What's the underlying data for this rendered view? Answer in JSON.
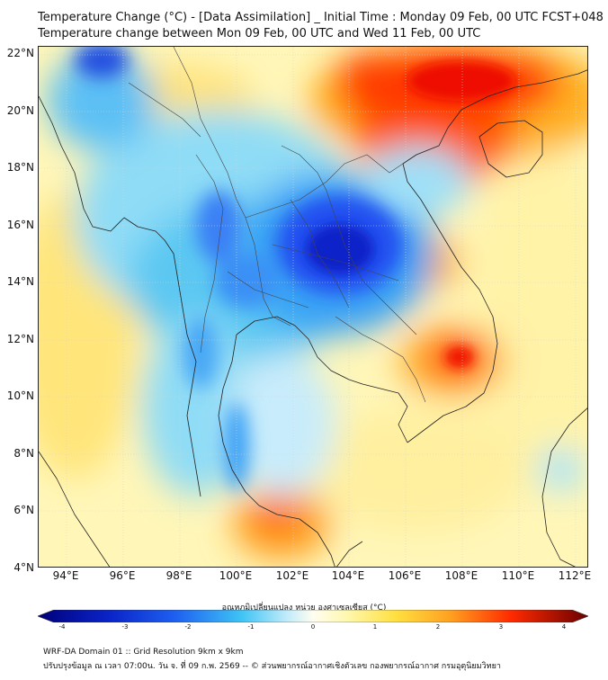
{
  "header": {
    "title_line1": "Temperature Change (°C) - [Data Assimilation] _ Initial Time : Monday 09 Feb, 00 UTC FCST+048",
    "title_line2": "Temperature change between Mon 09 Feb, 00 UTC and Wed 11 Feb, 00 UTC"
  },
  "map": {
    "lon_range": [
      93,
      112.5
    ],
    "lat_range": [
      4,
      22.3
    ],
    "lat_ticks": [
      "22°N",
      "20°N",
      "18°N",
      "16°N",
      "14°N",
      "12°N",
      "10°N",
      "8°N",
      "6°N",
      "4°N"
    ],
    "lon_ticks": [
      "94°E",
      "96°E",
      "98°E",
      "100°E",
      "102°E",
      "104°E",
      "106°E",
      "108°E",
      "110°E",
      "112°E"
    ]
  },
  "colorbar": {
    "label": "อุณหภูมิเปลี่ยนแปลง หน่วย องศาเซลเซียส (°C)",
    "ticks": [
      "-4",
      "-3",
      "-2",
      "-1",
      "0",
      "1",
      "2",
      "3",
      "4"
    ],
    "range": [
      -4,
      4
    ]
  },
  "footer": {
    "line1": "WRF-DA Domain 01 :: Grid Resolution 9km x 9km",
    "line2": "ปรับปรุงข้อมูล ณ เวลา 07:00น. วัน จ. ที่ 09 ก.พ. 2569 -- © ส่วนพยากรณ์อากาศเชิงตัวเลข กองพยากรณ์อากาศ กรมอุตุนิยมวิทยา"
  },
  "colors": {
    "cold_max": "#00008c",
    "cold": "#1e50ff",
    "cool": "#4fc3f7",
    "neutral": "#fffde0",
    "warm": "#ffd23c",
    "hot": "#ff2a00",
    "hot_max": "#780000"
  }
}
